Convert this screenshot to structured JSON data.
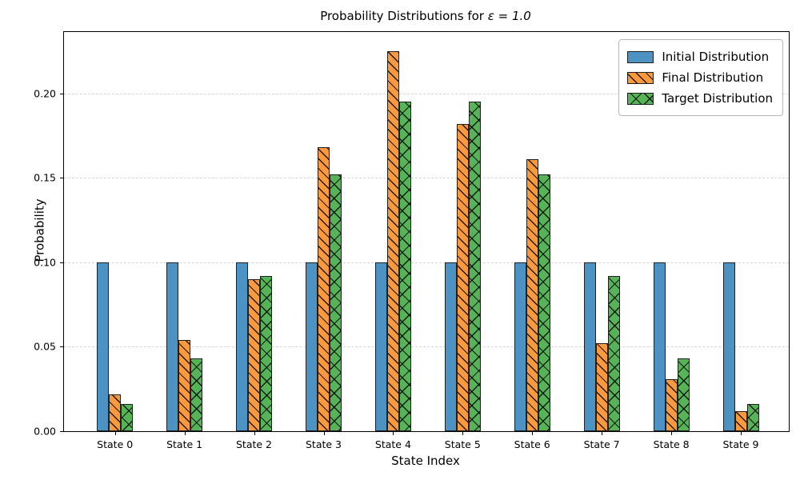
{
  "chart_data": {
    "type": "bar",
    "title": "Probability Distributions for ε = 1.0",
    "title_prefix": "Probability Distributions for ",
    "epsilon_symbol": "ε",
    "title_suffix": " = 1.0",
    "xlabel": "State Index",
    "ylabel": "Probability",
    "categories": [
      "State 0",
      "State 1",
      "State 2",
      "State 3",
      "State 4",
      "State 5",
      "State 6",
      "State 7",
      "State 8",
      "State 9"
    ],
    "series": [
      {
        "name": "Initial Distribution",
        "color": "#4C92C3",
        "hatch": "none",
        "values": [
          0.1,
          0.1,
          0.1,
          0.1,
          0.1,
          0.1,
          0.1,
          0.1,
          0.1,
          0.1
        ]
      },
      {
        "name": "Final Distribution",
        "color": "#FB993E",
        "hatch": "diagonal",
        "values": [
          0.022,
          0.054,
          0.09,
          0.168,
          0.225,
          0.182,
          0.161,
          0.052,
          0.031,
          0.012
        ]
      },
      {
        "name": "Target Distribution",
        "color": "#57B358",
        "hatch": "cross",
        "values": [
          0.016,
          0.043,
          0.092,
          0.152,
          0.195,
          0.195,
          0.152,
          0.092,
          0.043,
          0.016
        ]
      }
    ],
    "ylim": [
      0,
      0.23625
    ],
    "y_ticks": [
      0.0,
      0.05,
      0.1,
      0.15,
      0.2
    ],
    "y_tick_labels": [
      "0.00",
      "0.05",
      "0.10",
      "0.15",
      "0.20"
    ],
    "grid": "horizontal-dashed",
    "grid_color": "#d5d5d5",
    "edge_color": "#1f1f1f",
    "legend_position": "upper-right"
  }
}
